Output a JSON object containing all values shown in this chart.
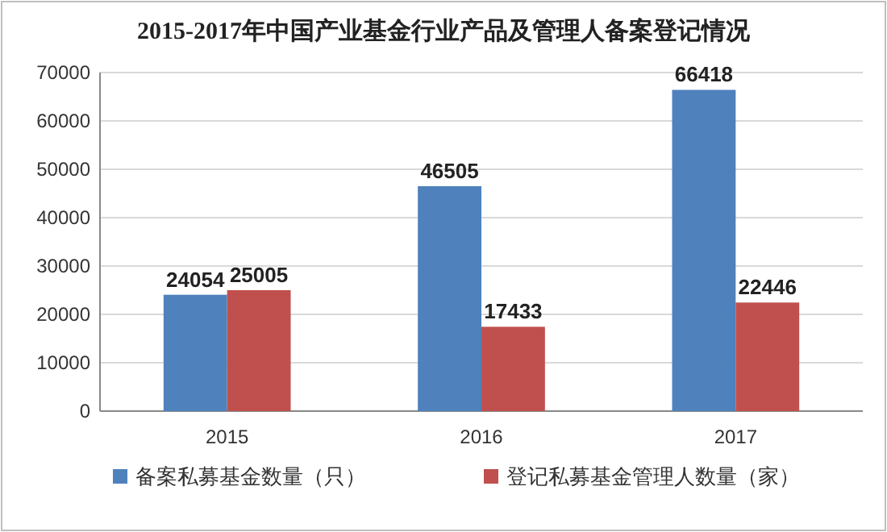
{
  "chart_data": {
    "type": "bar",
    "title": "2015-2017年中国产业基金行业产品及管理人备案登记情况",
    "categories": [
      "2015",
      "2016",
      "2017"
    ],
    "series": [
      {
        "name": "备案私募基金数量（只）",
        "color": "#4f81bd",
        "values": [
          24054,
          46505,
          66418
        ]
      },
      {
        "name": "登记私募基金管理人数量（家）",
        "color": "#c0504d",
        "values": [
          25005,
          17433,
          22446
        ]
      }
    ],
    "ylim": [
      0,
      70000
    ],
    "yticks": [
      0,
      10000,
      20000,
      30000,
      40000,
      50000,
      60000,
      70000
    ],
    "grid": "y",
    "legend": "bottom",
    "data_labels": true
  }
}
